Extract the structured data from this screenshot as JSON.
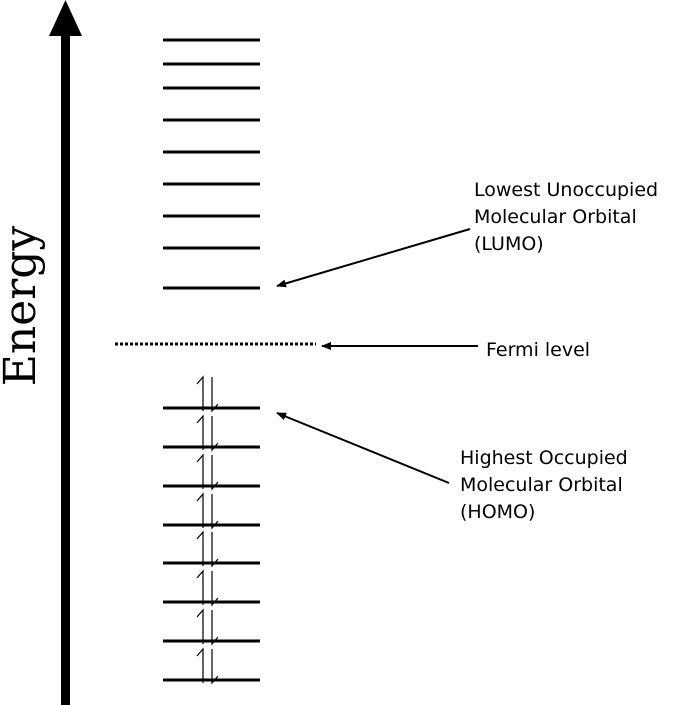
{
  "axis": {
    "label": "Energy"
  },
  "fermi": {
    "label": "Fermi level"
  },
  "lumo": {
    "line1": "Lowest Unoccupied",
    "line2": "Molecular Orbital",
    "line3": "(LUMO)"
  },
  "homo": {
    "line1": "Highest Occupied",
    "line2": "Molecular Orbital",
    "line3": "(HOMO)"
  },
  "levels": {
    "unoccupied_count": 9,
    "occupied_count": 8,
    "electrons_per_occupied": 2
  },
  "colors": {
    "ink": "#000000",
    "background": "#ffffff"
  }
}
